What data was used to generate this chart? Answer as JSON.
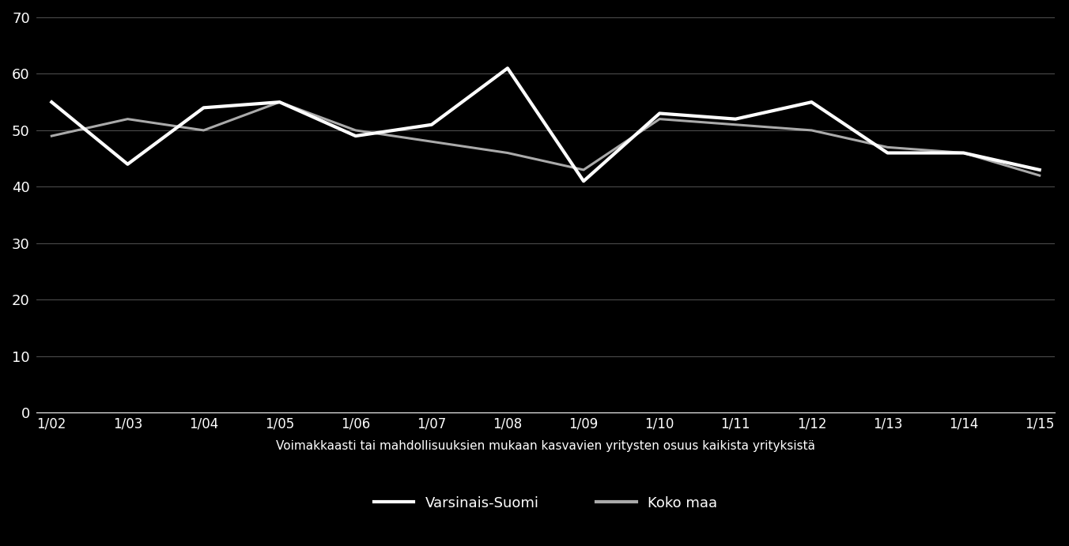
{
  "x_labels": [
    "1/02",
    "1/03",
    "1/04",
    "1/05",
    "1/06",
    "1/07",
    "1/08",
    "1/09",
    "1/10",
    "1/11",
    "1/12",
    "1/13",
    "1/14",
    "1/15"
  ],
  "varsinais_suomi": [
    55,
    44,
    54,
    55,
    49,
    51,
    61,
    41,
    53,
    52,
    55,
    46,
    46,
    43
  ],
  "koko_maa": [
    49,
    52,
    50,
    55,
    50,
    48,
    46,
    43,
    52,
    51,
    50,
    47,
    46,
    42
  ],
  "line1_color": "#ffffff",
  "line2_color": "#aaaaaa",
  "background_color": "#000000",
  "text_color": "#ffffff",
  "grid_color": "#888888",
  "ylabel_ticks": [
    0,
    10,
    20,
    30,
    40,
    50,
    60,
    70
  ],
  "ylim": [
    0,
    70
  ],
  "xlabel_text": "Voimakkaasti tai mahdollisuuksien mukaan kasvavien yritysten osuus kaikista yrityksistä",
  "legend1": "Varsinais-Suomi",
  "legend2": "Koko maa",
  "line_width": 2.2,
  "figsize": [
    13.52,
    6.91
  ],
  "dpi": 100
}
